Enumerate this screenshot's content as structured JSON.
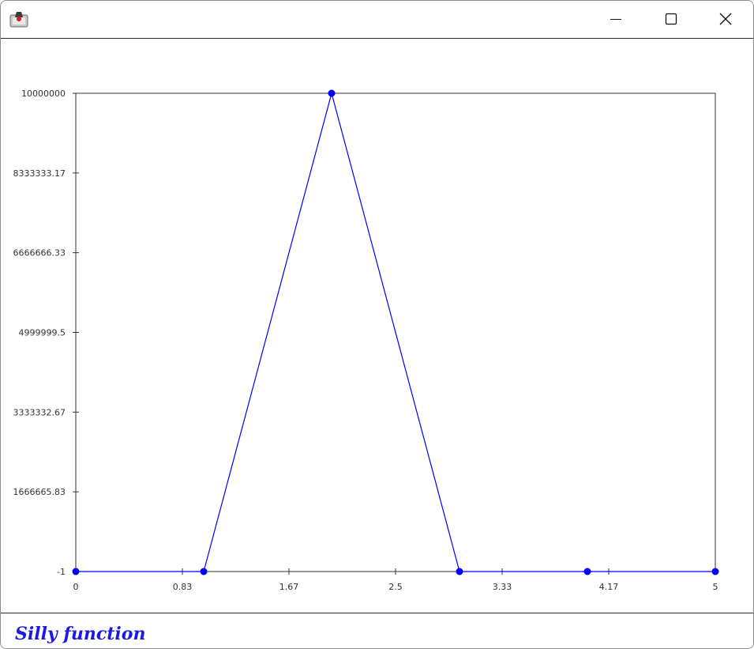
{
  "window": {
    "title": "",
    "icon": "java-app-icon",
    "controls": [
      "minimize-icon",
      "maximize-icon",
      "close-icon"
    ]
  },
  "chart_data": {
    "type": "line",
    "title": "Silly function",
    "xlabel": "",
    "ylabel": "",
    "x_ticks": [
      "0",
      "0.83",
      "1.67",
      "2.5",
      "3.33",
      "4.17",
      "5"
    ],
    "y_ticks": [
      "-1",
      "1666665.83",
      "3333332.67",
      "4999999.5",
      "6666666.33",
      "8333333.17",
      "10000000"
    ],
    "xlim": [
      0,
      5
    ],
    "ylim": [
      -1,
      10000000
    ],
    "grid": false,
    "series": [
      {
        "x": [
          0,
          1,
          2,
          3,
          4,
          5
        ],
        "y": [
          -1,
          -1,
          10000000,
          -1,
          -1,
          -1
        ],
        "color": "#0000ff"
      }
    ]
  }
}
